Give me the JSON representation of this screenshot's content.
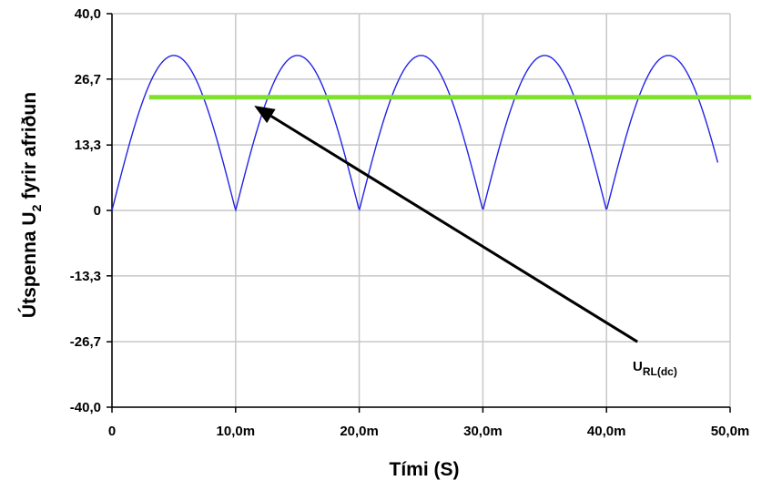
{
  "chart_data": {
    "type": "line",
    "xlabel": "Tími (S)",
    "ylabel": {
      "main": "Útspenna U",
      "sub": "2",
      "rest": " fyrir afriðun"
    },
    "xlim": [
      0,
      0.05
    ],
    "ylim": [
      -40,
      40
    ],
    "x_ticks": [
      {
        "value": 0,
        "label": "0"
      },
      {
        "value": 0.01,
        "label": "10,0m"
      },
      {
        "value": 0.02,
        "label": "20,0m"
      },
      {
        "value": 0.03,
        "label": "30,0m"
      },
      {
        "value": 0.04,
        "label": "40,0m"
      },
      {
        "value": 0.05,
        "label": "50,0m"
      }
    ],
    "y_ticks": [
      {
        "value": 40,
        "label": "40,0"
      },
      {
        "value": 26.7,
        "label": "26,7"
      },
      {
        "value": 13.3,
        "label": "13,3"
      },
      {
        "value": 0,
        "label": "0"
      },
      {
        "value": -13.3,
        "label": "-13,3"
      },
      {
        "value": -26.7,
        "label": "-26,7"
      },
      {
        "value": -40,
        "label": "-40,0"
      }
    ],
    "grid": true,
    "series": [
      {
        "kind": "full-wave rectified sine",
        "amplitude": 31.5,
        "period_of_ripple": 0.01,
        "x_start": 0,
        "x_end": 0.049,
        "color": "#2323e6"
      },
      {
        "kind": "dc level",
        "y": 23.0,
        "x_start": 0.003,
        "x_end": 0.0517,
        "color": "#7ee12d"
      }
    ],
    "annotation": {
      "text_main": "U",
      "text_sub": "RL(dc)",
      "arrow_from": {
        "x": 0.0425,
        "y": -26.7
      },
      "arrow_to": {
        "x": 0.0115,
        "y": 21.3
      },
      "color": "#000000"
    }
  }
}
